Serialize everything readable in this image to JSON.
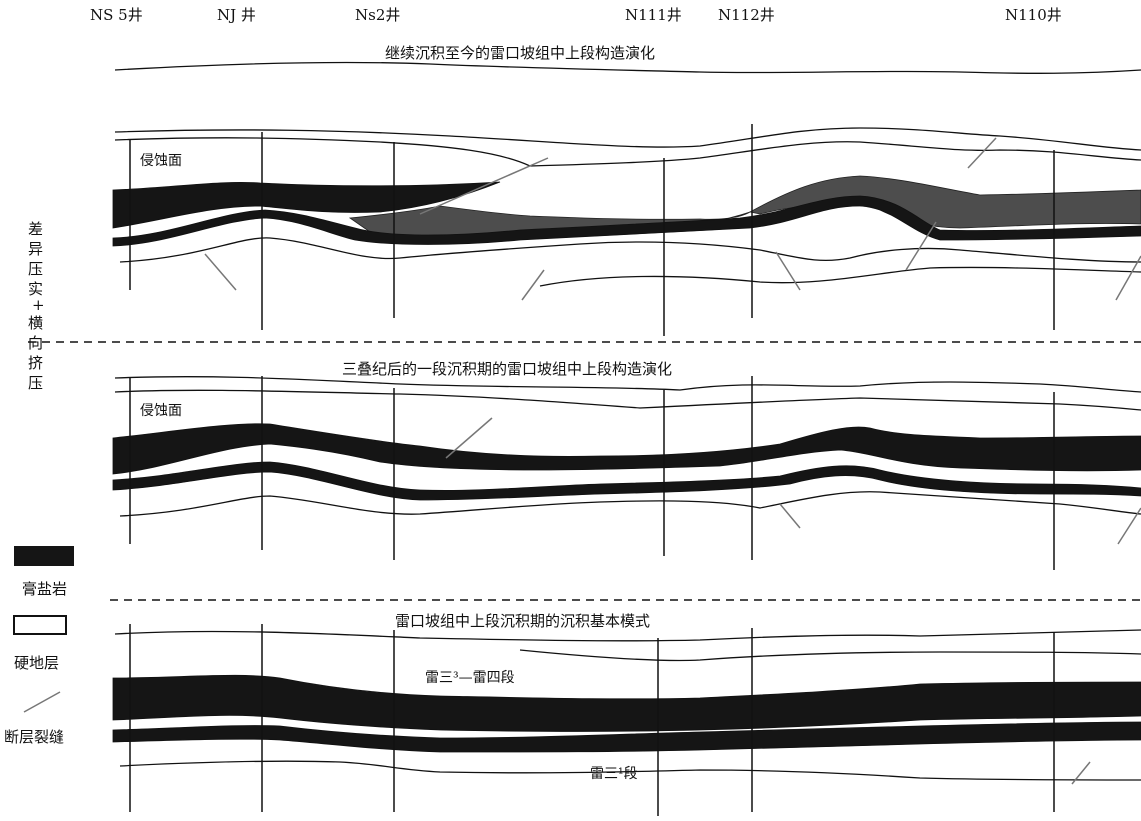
{
  "wells": [
    {
      "id": "ns5",
      "label": "NS 5井"
    },
    {
      "id": "nj",
      "label": "NJ 井"
    },
    {
      "id": "ns2",
      "label": "Ns2井"
    },
    {
      "id": "n111",
      "label": "N111井"
    },
    {
      "id": "n112",
      "label": "N112井"
    },
    {
      "id": "n110",
      "label": "N110井"
    }
  ],
  "panels": [
    {
      "title": "继续沉积至今的雷口坡组中上段构造演化",
      "note": "侵蚀面"
    },
    {
      "title": "三叠纪后的一段沉积期的雷口坡组中上段构造演化",
      "note": "侵蚀面"
    },
    {
      "title": "雷口坡组中上段沉积期的沉积基本模式",
      "unit_upper": "雷三³—雷四段",
      "unit_lower": "雷三¹段"
    }
  ],
  "side_label": [
    "差",
    "异",
    "压",
    "实",
    "+",
    "横",
    "向",
    "挤",
    "压"
  ],
  "legend": [
    {
      "id": "salt",
      "label": "膏盐岩",
      "color": "#151515"
    },
    {
      "id": "hard",
      "label": "硬地层",
      "color": "#ffffff"
    },
    {
      "id": "fault",
      "label": "断层裂缝",
      "color": "#777777"
    }
  ]
}
